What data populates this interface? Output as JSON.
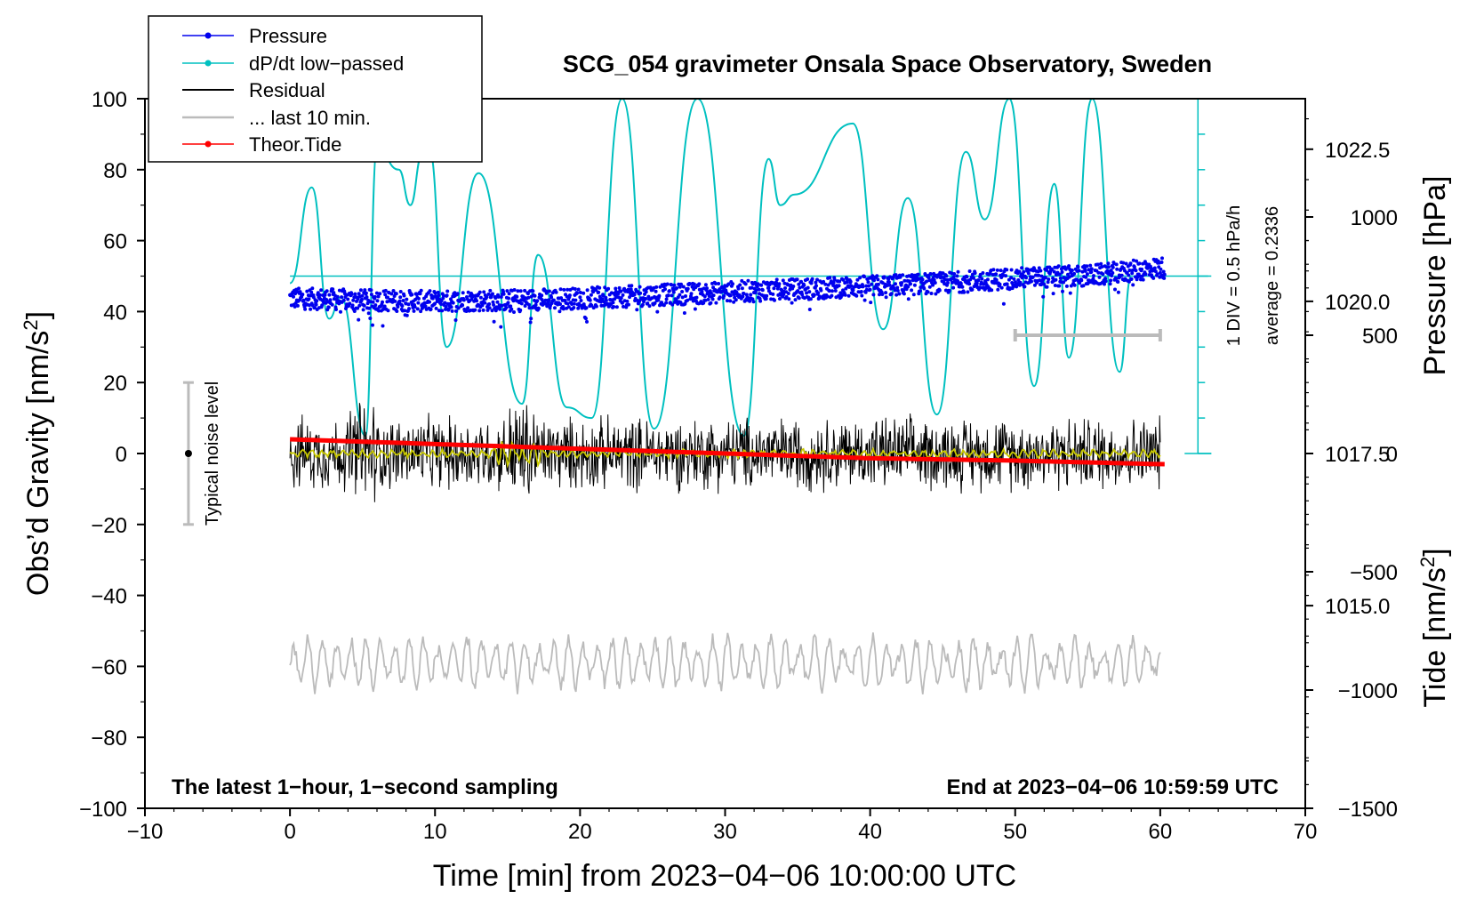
{
  "chart_data": {
    "type": "line",
    "title": "SCG_054 gravimeter Onsala Space Observatory, Sweden",
    "xlabel": "Time [min] from 2023−04−06 10:00:00 UTC",
    "ylabel_left_main": "Obs’d Gravity [nm/s",
    "ylabel_left_sup": "2",
    "ylabel_left_close": "]",
    "ylabel_right_pressure": "Pressure [hPa]",
    "ylabel_right_tide_main": "Tide [nm/s",
    "ylabel_right_tide_sup": "2",
    "ylabel_right_tide_close": "]",
    "xlim": [
      -10,
      70
    ],
    "ylim": [
      -100,
      100
    ],
    "pressure_range": [
      1011.67,
      1023.33
    ],
    "tide_range": [
      -1500,
      1500
    ],
    "x_ticks": [
      "−10",
      "0",
      "10",
      "20",
      "30",
      "40",
      "50",
      "60",
      "70"
    ],
    "x_tick_values": [
      -10,
      0,
      10,
      20,
      30,
      40,
      50,
      60,
      70
    ],
    "y_ticks": [
      "100",
      "80",
      "60",
      "40",
      "20",
      "0",
      "−20",
      "−40",
      "−60",
      "−80",
      "−100"
    ],
    "y_tick_values": [
      100,
      80,
      60,
      40,
      20,
      0,
      -20,
      -40,
      -60,
      -80,
      -100
    ],
    "pressure_ticks": [
      "1022.5",
      "1020.0",
      "1017.5",
      "1015.0"
    ],
    "pressure_tick_values": [
      1022.5,
      1020.0,
      1017.5,
      1015.0
    ],
    "tide_ticks": [
      "1000",
      "500",
      "0",
      "−500",
      "−1000",
      "−1500"
    ],
    "tide_tick_values": [
      1000,
      500,
      0,
      -500,
      -1000,
      -1500
    ],
    "legend": {
      "placement": "top-left",
      "entries": [
        {
          "label": "Pressure",
          "color": "#0000ee",
          "marker": true
        },
        {
          "label": "dP/dt low−passed",
          "color": "#00c0c0",
          "marker": true
        },
        {
          "label": "Residual",
          "color": "#000000",
          "marker": false
        },
        {
          "label": "... last 10 min.",
          "color": "#bbbbbb",
          "marker": false
        },
        {
          "label": "Theor.Tide",
          "color": "#ff0000",
          "marker": true
        }
      ]
    },
    "noise_label": "Typical noise level",
    "noise_level": {
      "x": -7,
      "center": 0,
      "low": -20,
      "high": 20
    },
    "dpdt_scale_label": "1 DIV = 0.5 hPa/h",
    "dpdt_average_label": "average = 0.2336",
    "last10_bar": {
      "x_start": 50,
      "x_end": 60,
      "tide_level": 500
    },
    "footer_left": "The latest 1−hour, 1−second sampling",
    "footer_right": "End at 2023−04−06 10:59:59 UTC",
    "series": [
      {
        "name": "Pressure",
        "color": "#0000ee",
        "x": [
          0,
          5,
          10,
          15,
          20,
          25,
          30,
          35,
          40,
          45,
          50,
          55,
          60
        ],
        "values_hpa": [
          1020.05,
          1020.02,
          1020.0,
          1020.02,
          1020.05,
          1020.1,
          1020.15,
          1020.2,
          1020.25,
          1020.3,
          1020.38,
          1020.42,
          1020.55
        ],
        "units": "hPa"
      },
      {
        "name": "dP/dt low−passed",
        "color": "#00c0c0",
        "x": [
          0,
          1.5,
          2.7,
          3.5,
          5.2,
          6.0,
          7.5,
          8.3,
          9.1,
          9.6,
          10.8,
          13.0,
          16.0,
          17.1,
          19.1,
          20.8,
          22.9,
          25.1,
          28.1,
          31.3,
          33.0,
          33.8,
          34.8,
          38.8,
          40.9,
          42.6,
          44.6,
          46.6,
          47.9,
          49.6,
          51.3,
          52.7,
          53.7,
          55.3,
          57.2,
          58.0
        ],
        "values": [
          48,
          75,
          38,
          44,
          5,
          86,
          80,
          70,
          84,
          86,
          30,
          79,
          14,
          56,
          13,
          10,
          100,
          7,
          100,
          5,
          83,
          70,
          73,
          93,
          35,
          72,
          11,
          85,
          66,
          100,
          19,
          76,
          27,
          100,
          23,
          50
        ],
        "reference_line": 50,
        "units": "nm/s2 scale (1 DIV = 0.5 hPa/h)"
      },
      {
        "name": "Residual",
        "color": "#000000",
        "x_range": [
          0,
          60
        ],
        "typical_amplitude": 8,
        "max_abs": 21,
        "units": "nm/s2"
      },
      {
        "name": "Residual smoothed",
        "color": "#c8c800",
        "x_range": [
          0,
          60
        ],
        "approx_level": 0,
        "units": "nm/s2"
      },
      {
        "name": "... last 10 min.",
        "color": "#bbbbbb",
        "x_range": [
          0,
          60
        ],
        "center": -59,
        "amplitude": 7,
        "units": "nm/s2"
      },
      {
        "name": "Theor.Tide",
        "color": "#ff0000",
        "x": [
          0,
          10,
          20,
          30,
          40,
          50,
          60
        ],
        "values_tide": [
          60,
          40,
          20,
          0,
          -20,
          -30,
          -45
        ],
        "units": "nm/s2"
      }
    ]
  }
}
